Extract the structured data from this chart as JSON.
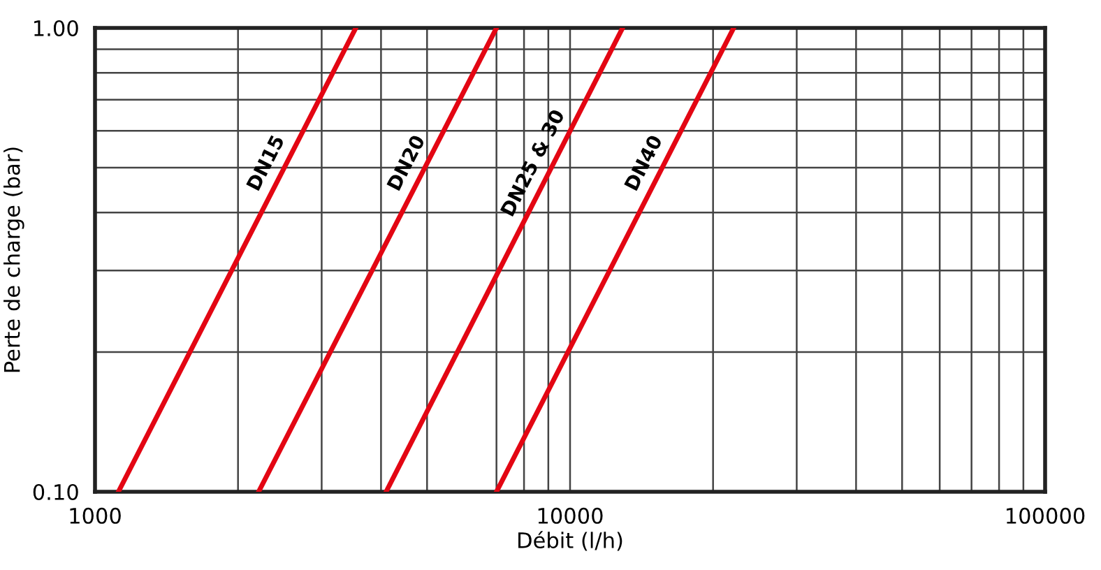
{
  "chart_data": {
    "type": "line",
    "xlabel": "Débit (l/h)",
    "ylabel": "Perte de charge (bar)",
    "log": "xy",
    "grid": true,
    "marker": "none",
    "line_style": "solid",
    "xlim": [
      1000,
      100000
    ],
    "ylim": [
      0.1,
      1.0
    ],
    "xticks": [
      1000,
      {
        "value": 2000,
        "label": null
      },
      {
        "value": 3000,
        "label": null
      },
      {
        "value": 4000,
        "label": null
      },
      {
        "value": 5000,
        "label": null
      },
      {
        "value": 7000,
        "label": null
      },
      {
        "value": 8000,
        "label": null
      },
      {
        "value": 9000,
        "label": null
      },
      10000,
      {
        "value": 20000,
        "label": null
      },
      {
        "value": 30000,
        "label": null
      },
      {
        "value": 40000,
        "label": null
      },
      {
        "value": 50000,
        "label": null
      },
      {
        "value": 60000,
        "label": null
      },
      {
        "value": 70000,
        "label": null
      },
      {
        "value": 80000,
        "label": null
      },
      {
        "value": 90000,
        "label": null
      },
      100000
    ],
    "yticks": [
      {
        "value": 0.1,
        "label": "0.10"
      },
      {
        "value": 0.2,
        "label": null
      },
      {
        "value": 0.3,
        "label": null
      },
      {
        "value": 0.4,
        "label": null
      },
      {
        "value": 0.5,
        "label": null
      },
      {
        "value": 0.6,
        "label": null
      },
      {
        "value": 0.7,
        "label": null
      },
      {
        "value": 0.8,
        "label": null
      },
      {
        "value": 0.9,
        "label": null
      },
      {
        "value": 1.0,
        "label": "1.00"
      }
    ],
    "series": [
      {
        "name": "DN15",
        "color": "#e30613",
        "x": [
          1120,
          3540
        ],
        "values": [
          0.1,
          1.0
        ]
      },
      {
        "name": "DN20",
        "color": "#e30613",
        "x": [
          2210,
          7000
        ],
        "values": [
          0.1,
          1.0
        ]
      },
      {
        "name": "DN25 & 30",
        "color": "#e30613",
        "x": [
          4100,
          12900
        ],
        "values": [
          0.1,
          1.0
        ]
      },
      {
        "name": "DN40",
        "color": "#e30613",
        "x": [
          7000,
          22100
        ],
        "values": [
          0.1,
          1.0
        ]
      }
    ]
  }
}
